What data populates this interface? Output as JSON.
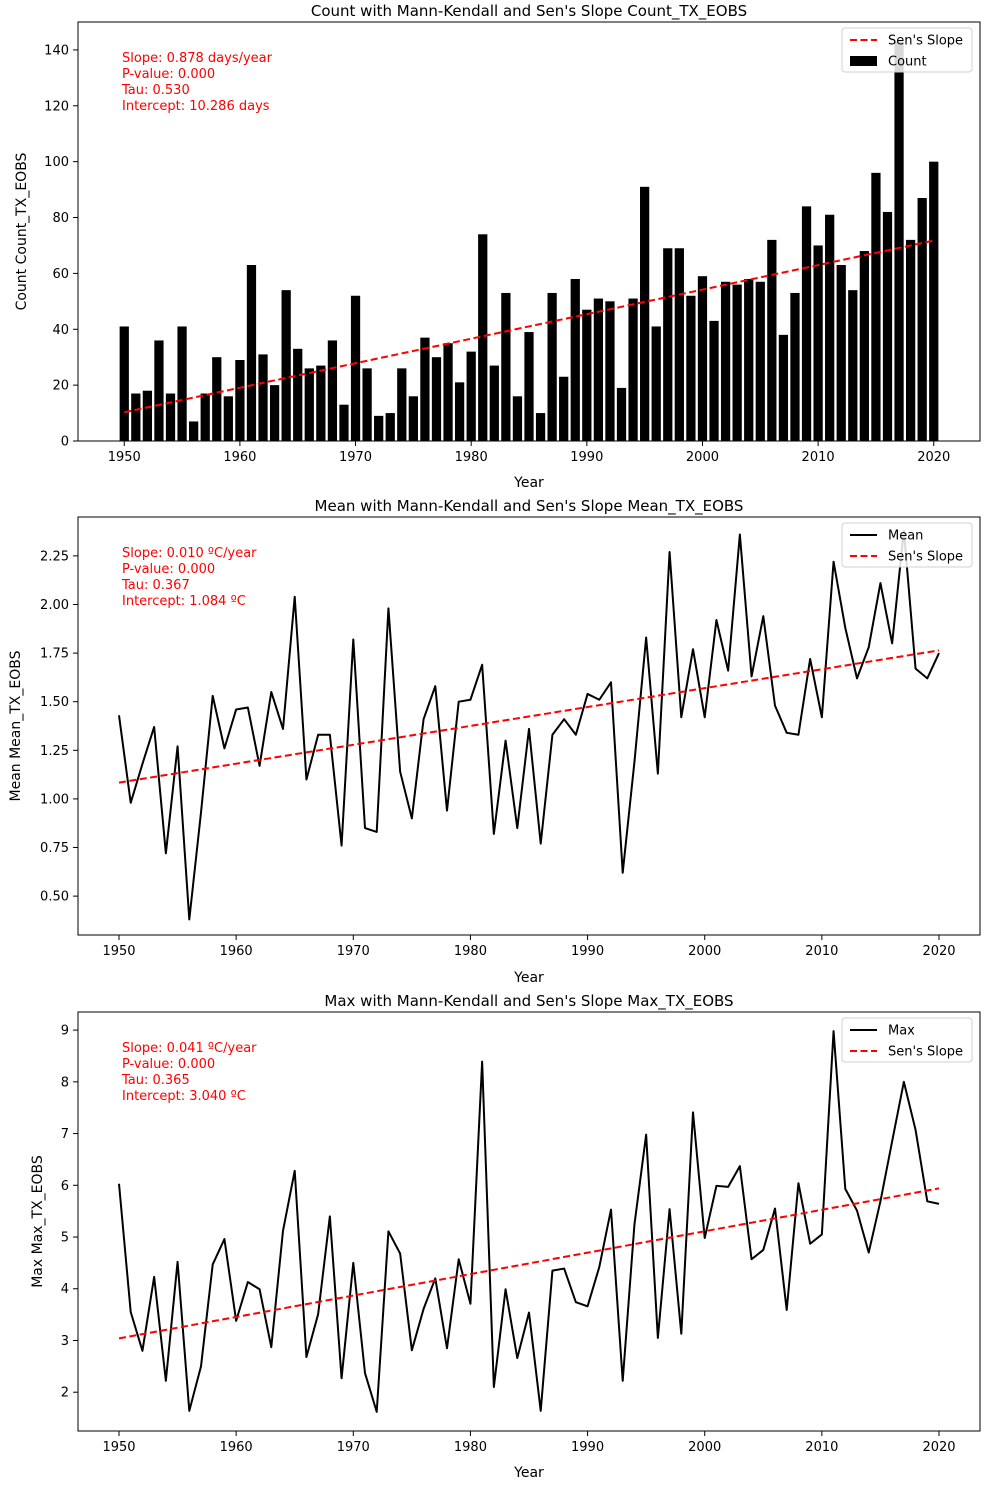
{
  "chart_data": [
    {
      "type": "bar",
      "title": "Count with Mann-Kendall and Sen's Slope Count_TX_EOBS",
      "xlabel": "Year",
      "ylabel": "Count Count_TX_EOBS",
      "xlim": [
        1946,
        2024
      ],
      "ylim": [
        0,
        150
      ],
      "xticks": [
        1950,
        1960,
        1970,
        1980,
        1990,
        2000,
        2010,
        2020
      ],
      "yticks": [
        0,
        20,
        40,
        60,
        80,
        100,
        120,
        140
      ],
      "x": [
        1950,
        1951,
        1952,
        1953,
        1954,
        1955,
        1956,
        1957,
        1958,
        1959,
        1960,
        1961,
        1962,
        1963,
        1964,
        1965,
        1966,
        1967,
        1968,
        1969,
        1970,
        1971,
        1972,
        1973,
        1974,
        1975,
        1976,
        1977,
        1978,
        1979,
        1980,
        1981,
        1982,
        1983,
        1984,
        1985,
        1986,
        1987,
        1988,
        1989,
        1990,
        1991,
        1992,
        1993,
        1994,
        1995,
        1996,
        1997,
        1998,
        1999,
        2000,
        2001,
        2002,
        2003,
        2004,
        2005,
        2006,
        2007,
        2008,
        2009,
        2010,
        2011,
        2012,
        2013,
        2014,
        2015,
        2016,
        2017,
        2018,
        2019,
        2020
      ],
      "series": [
        {
          "name": "Count",
          "kind": "bar",
          "color": "#000000",
          "values": [
            41,
            17,
            18,
            36,
            17,
            41,
            7,
            17,
            30,
            16,
            29,
            63,
            31,
            20,
            54,
            33,
            26,
            27,
            36,
            13,
            52,
            26,
            9,
            10,
            26,
            16,
            37,
            30,
            35,
            21,
            32,
            74,
            27,
            53,
            16,
            39,
            10,
            53,
            23,
            58,
            47,
            51,
            50,
            19,
            51,
            91,
            41,
            69,
            69,
            52,
            59,
            43,
            57,
            56,
            58,
            57,
            72,
            38,
            53,
            84,
            70,
            81,
            63,
            54,
            68,
            96,
            82,
            143,
            72,
            87,
            100
          ]
        },
        {
          "name": "Sen's Slope",
          "kind": "dashed-line",
          "color": "#ff0000",
          "x": [
            1950,
            2020
          ],
          "values": [
            10.286,
            71.75
          ]
        }
      ],
      "legend": {
        "position": "top-right",
        "entries": [
          "Sen's Slope",
          "Count"
        ]
      },
      "annotations": [
        "Slope: 0.878 days/year",
        "P-value: 0.000",
        "Tau: 0.530",
        "Intercept: 10.286 days"
      ],
      "annotation_color": "#ff0000"
    },
    {
      "type": "line",
      "title": "Mean with Mann-Kendall and Sen's Slope Mean_TX_EOBS",
      "xlabel": "Year",
      "ylabel": "Mean Mean_TX_EOBS",
      "xlim": [
        1946.5,
        2023.5
      ],
      "ylim": [
        0.3,
        2.45
      ],
      "xticks": [
        1950,
        1960,
        1970,
        1980,
        1990,
        2000,
        2010,
        2020
      ],
      "yticks": [
        0.5,
        0.75,
        1.0,
        1.25,
        1.5,
        1.75,
        2.0,
        2.25
      ],
      "ytick_labels": [
        "0.50",
        "0.75",
        "1.00",
        "1.25",
        "1.50",
        "1.75",
        "2.00",
        "2.25"
      ],
      "x": [
        1950,
        1951,
        1952,
        1953,
        1954,
        1955,
        1956,
        1957,
        1958,
        1959,
        1960,
        1961,
        1962,
        1963,
        1964,
        1965,
        1966,
        1967,
        1968,
        1969,
        1970,
        1971,
        1972,
        1973,
        1974,
        1975,
        1976,
        1977,
        1978,
        1979,
        1980,
        1981,
        1982,
        1983,
        1984,
        1985,
        1986,
        1987,
        1988,
        1989,
        1990,
        1991,
        1992,
        1993,
        1994,
        1995,
        1996,
        1997,
        1998,
        1999,
        2000,
        2001,
        2002,
        2003,
        2004,
        2005,
        2006,
        2007,
        2008,
        2009,
        2010,
        2011,
        2012,
        2013,
        2014,
        2015,
        2016,
        2017,
        2018,
        2019,
        2020
      ],
      "series": [
        {
          "name": "Mean",
          "kind": "line",
          "color": "#000000",
          "values": [
            1.43,
            0.98,
            1.18,
            1.37,
            0.72,
            1.27,
            0.38,
            0.93,
            1.53,
            1.26,
            1.46,
            1.47,
            1.17,
            1.55,
            1.36,
            2.04,
            1.1,
            1.33,
            1.33,
            0.76,
            1.82,
            0.85,
            0.83,
            1.98,
            1.14,
            0.9,
            1.41,
            1.58,
            0.94,
            1.5,
            1.51,
            1.69,
            0.82,
            1.3,
            0.85,
            1.36,
            0.77,
            1.33,
            1.41,
            1.33,
            1.54,
            1.51,
            1.6,
            0.62,
            1.19,
            1.83,
            1.13,
            2.27,
            1.42,
            1.77,
            1.42,
            1.92,
            1.66,
            2.36,
            1.63,
            1.94,
            1.48,
            1.34,
            1.33,
            1.72,
            1.42,
            2.22,
            1.88,
            1.62,
            1.78,
            2.11,
            1.8,
            2.38,
            1.67,
            1.62,
            1.75
          ]
        },
        {
          "name": "Sen's Slope",
          "kind": "dashed-line",
          "color": "#ff0000",
          "x": [
            1950,
            2020
          ],
          "values": [
            1.084,
            1.764
          ]
        }
      ],
      "legend": {
        "position": "top-right",
        "entries": [
          "Mean",
          "Sen's Slope"
        ]
      },
      "annotations": [
        "Slope: 0.010 ºC/year",
        "P-value: 0.000",
        "Tau: 0.367",
        "Intercept: 1.084 ºC"
      ],
      "annotation_color": "#ff0000"
    },
    {
      "type": "line",
      "title": "Max with Mann-Kendall and Sen's Slope Max_TX_EOBS",
      "xlabel": "Year",
      "ylabel": "Max Max_TX_EOBS",
      "xlim": [
        1946.5,
        2023.5
      ],
      "ylim": [
        1.25,
        9.35
      ],
      "xticks": [
        1950,
        1960,
        1970,
        1980,
        1990,
        2000,
        2010,
        2020
      ],
      "yticks": [
        2,
        3,
        4,
        5,
        6,
        7,
        8,
        9
      ],
      "x": [
        1950,
        1951,
        1952,
        1953,
        1954,
        1955,
        1956,
        1957,
        1958,
        1959,
        1960,
        1961,
        1962,
        1963,
        1964,
        1965,
        1966,
        1967,
        1968,
        1969,
        1970,
        1971,
        1972,
        1973,
        1974,
        1975,
        1976,
        1977,
        1978,
        1979,
        1980,
        1981,
        1982,
        1983,
        1984,
        1985,
        1986,
        1987,
        1988,
        1989,
        1990,
        1991,
        1992,
        1993,
        1994,
        1995,
        1996,
        1997,
        1998,
        1999,
        2000,
        2001,
        2002,
        2003,
        2004,
        2005,
        2006,
        2007,
        2008,
        2009,
        2010,
        2011,
        2012,
        2013,
        2014,
        2015,
        2016,
        2017,
        2018,
        2019,
        2020
      ],
      "series": [
        {
          "name": "Max",
          "kind": "line",
          "color": "#000000",
          "values": [
            6.03,
            3.55,
            2.8,
            4.23,
            2.22,
            4.52,
            1.64,
            2.5,
            4.47,
            4.96,
            3.38,
            4.13,
            3.99,
            2.87,
            5.12,
            6.28,
            2.68,
            3.51,
            5.4,
            2.27,
            4.5,
            2.37,
            1.62,
            5.11,
            4.68,
            2.81,
            3.61,
            4.2,
            2.85,
            4.57,
            3.71,
            8.39,
            2.1,
            3.99,
            2.66,
            3.54,
            1.64,
            4.35,
            4.39,
            3.74,
            3.66,
            4.42,
            5.53,
            2.22,
            5.24,
            6.98,
            3.05,
            5.54,
            3.13,
            7.41,
            4.98,
            5.99,
            5.97,
            6.37,
            4.57,
            4.75,
            5.55,
            3.59,
            6.04,
            4.87,
            5.05,
            8.98,
            5.93,
            5.51,
            4.7,
            5.69,
            6.85,
            8.0,
            7.07,
            5.69,
            5.64
          ]
        },
        {
          "name": "Sen's Slope",
          "kind": "dashed-line",
          "color": "#ff0000",
          "x": [
            1950,
            2020
          ],
          "values": [
            3.04,
            5.94
          ]
        }
      ],
      "legend": {
        "position": "top-right",
        "entries": [
          "Max",
          "Sen's Slope"
        ]
      },
      "annotations": [
        "Slope: 0.041 ºC/year",
        "P-value: 0.000",
        "Tau: 0.365",
        "Intercept: 3.040 ºC"
      ],
      "annotation_color": "#ff0000"
    }
  ]
}
